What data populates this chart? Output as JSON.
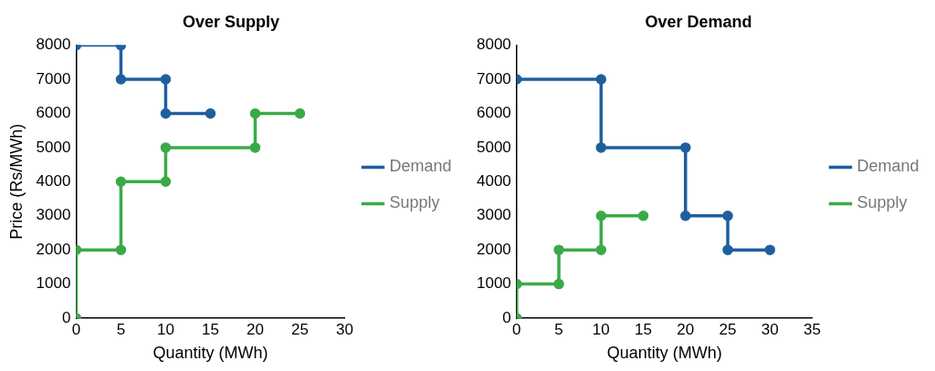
{
  "chart_data": [
    {
      "type": "line",
      "title": "Over Supply",
      "xlabel": "Quantity (MWh)",
      "ylabel": "Price (Rs/MWh)",
      "xlim": [
        0,
        30
      ],
      "xticks": [
        0,
        5,
        10,
        15,
        20,
        25,
        30
      ],
      "ylim": [
        0,
        8000
      ],
      "yticks": [
        0,
        1000,
        2000,
        3000,
        4000,
        5000,
        6000,
        7000,
        8000
      ],
      "grid": false,
      "legend": "right",
      "marker": "circle",
      "line_style": "solid",
      "series": [
        {
          "name": "Demand",
          "color": "#1f5f9e",
          "x": [
            0,
            5,
            5,
            10,
            10,
            15
          ],
          "values": [
            8000,
            8000,
            7000,
            7000,
            6000,
            6000
          ]
        },
        {
          "name": "Supply",
          "color": "#3aaa48",
          "x": [
            0,
            0,
            5,
            5,
            10,
            10,
            20,
            20,
            25
          ],
          "values": [
            0,
            2000,
            2000,
            4000,
            4000,
            5000,
            5000,
            6000,
            6000
          ]
        }
      ]
    },
    {
      "type": "line",
      "title": "Over Demand",
      "xlabel": "Quantity (MWh)",
      "xlim": [
        0,
        35
      ],
      "xticks": [
        0,
        5,
        10,
        15,
        20,
        25,
        30,
        35
      ],
      "ylim": [
        0,
        8000
      ],
      "yticks": [
        0,
        1000,
        2000,
        3000,
        4000,
        5000,
        6000,
        7000,
        8000
      ],
      "grid": false,
      "legend": "right",
      "marker": "circle",
      "line_style": "solid",
      "series": [
        {
          "name": "Demand",
          "color": "#1f5f9e",
          "x": [
            0,
            10,
            10,
            20,
            20,
            25,
            25,
            30
          ],
          "values": [
            7000,
            7000,
            5000,
            5000,
            3000,
            3000,
            2000,
            2000
          ]
        },
        {
          "name": "Supply",
          "color": "#3aaa48",
          "x": [
            0,
            0,
            5,
            5,
            10,
            10,
            15
          ],
          "values": [
            0,
            1000,
            1000,
            2000,
            2000,
            3000,
            3000
          ]
        }
      ]
    }
  ]
}
